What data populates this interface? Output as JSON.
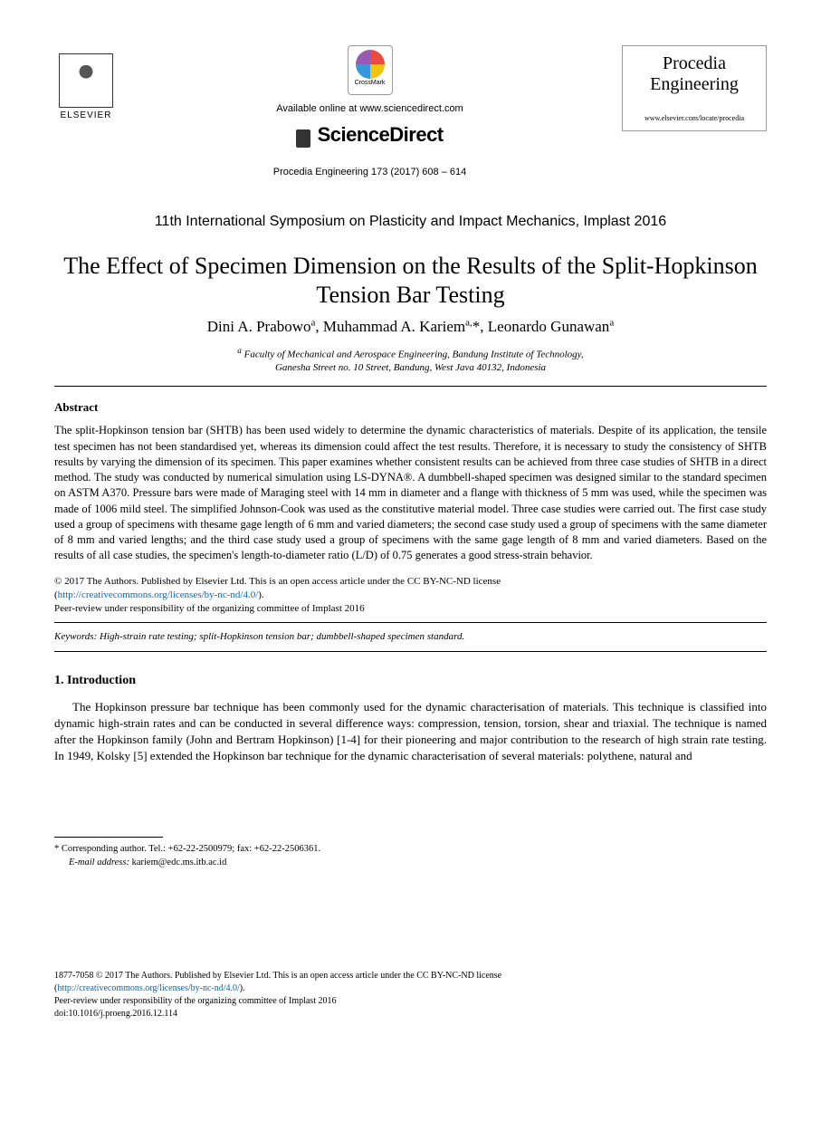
{
  "header": {
    "elsevier_label": "ELSEVIER",
    "crossmark_label": "CrossMark",
    "available_text": "Available online at www.sciencedirect.com",
    "sciencedirect_label": "ScienceDirect",
    "citation": "Procedia Engineering 173 (2017) 608 – 614",
    "procedia_line1": "Procedia",
    "procedia_line2": "Engineering",
    "procedia_url": "www.elsevier.com/locate/procedia"
  },
  "conference": "11th International Symposium on Plasticity and Impact Mechanics, Implast 2016",
  "title": "The Effect of Specimen Dimension on the Results of the Split-Hopkinson Tension Bar Testing",
  "authors_html": "Dini A. Prabowoᵃ, Muhammad A. Kariemᵃ,*, Leonardo Gunawanᵃ",
  "authors": [
    {
      "name": "Dini A. Prabowo",
      "sup": "a"
    },
    {
      "name": "Muhammad A. Kariem",
      "sup": "a,*"
    },
    {
      "name": "Leonardo Gunawan",
      "sup": "a"
    }
  ],
  "affiliation": {
    "sup": "a",
    "line1": "Faculty of Mechanical and Aerospace Engineering, Bandung Institute of Technology,",
    "line2": "Ganesha Street no. 10 Street, Bandung, West Java 40132, Indonesia"
  },
  "abstract": {
    "heading": "Abstract",
    "text": "The split-Hopkinson tension bar (SHTB) has been used widely to determine the dynamic characteristics of materials. Despite of its application, the tensile test specimen has not been standardised yet, whereas its dimension could affect the test results. Therefore, it is necessary to study the consistency of SHTB results by varying the dimension of its specimen. This paper examines whether consistent results can be achieved from three case studies of SHTB in a direct method. The study was conducted by numerical simulation using LS-DYNA®. A dumbbell-shaped specimen was designed similar to the standard specimen on ASTM A370. Pressure bars were made of Maraging steel with 14 mm in diameter and a flange with thickness of 5 mm was used, while the specimen was made of 1006 mild steel. The simplified Johnson-Cook was used as the constitutive material model. Three case studies were carried out. The first case study used a group of specimens with thesame gage length of 6 mm and varied diameters; the second case study used a group of specimens with the same diameter of 8 mm and varied lengths; and the third case study used a group of specimens with the same gage length of 8 mm and varied diameters. Based on the results of all case studies, the specimen's length-to-diameter ratio (L/D) of 0.75 generates a good stress-strain behavior."
  },
  "copyright": {
    "line1": "© 2017 The Authors. Published by Elsevier Ltd. This is an open access article under the CC BY-NC-ND license",
    "license_url": "http://creativecommons.org/licenses/by-nc-nd/4.0/",
    "peer_review": "Peer-review under responsibility of the organizing committee of Implast 2016"
  },
  "keywords": {
    "label": "Keywords:",
    "text": "High-strain rate testing; split-Hopkinson tension bar; dumbbell-shaped specimen standard."
  },
  "introduction": {
    "heading": "1. Introduction",
    "text": "The Hopkinson pressure bar technique has been commonly used for the dynamic characterisation of materials. This technique is classified into dynamic high-strain rates and can be conducted in several difference ways: compression, tension, torsion, shear and triaxial. The technique is named after the Hopkinson family (John and Bertram Hopkinson) [1-4] for their pioneering and major contribution to the research of high strain rate testing. In 1949, Kolsky [5] extended the Hopkinson bar technique for the dynamic characterisation of several materials: polythene, natural and"
  },
  "corresponding": {
    "line1": "* Corresponding author. Tel.: +62-22-2500979; fax: +62-22-2506361.",
    "email_label": "E-mail address:",
    "email": "kariem@edc.ms.itb.ac.id"
  },
  "footer": {
    "issn_line": "1877-7058 © 2017 The Authors. Published by Elsevier Ltd. This is an open access article under the CC BY-NC-ND license",
    "license_url": "http://creativecommons.org/licenses/by-nc-nd/4.0/",
    "peer_review": "Peer-review under responsibility of the organizing committee of Implast 2016",
    "doi": "doi:10.1016/j.proeng.2016.12.114"
  },
  "colors": {
    "text": "#000000",
    "link": "#0066cc",
    "border": "#999999",
    "background": "#ffffff"
  }
}
